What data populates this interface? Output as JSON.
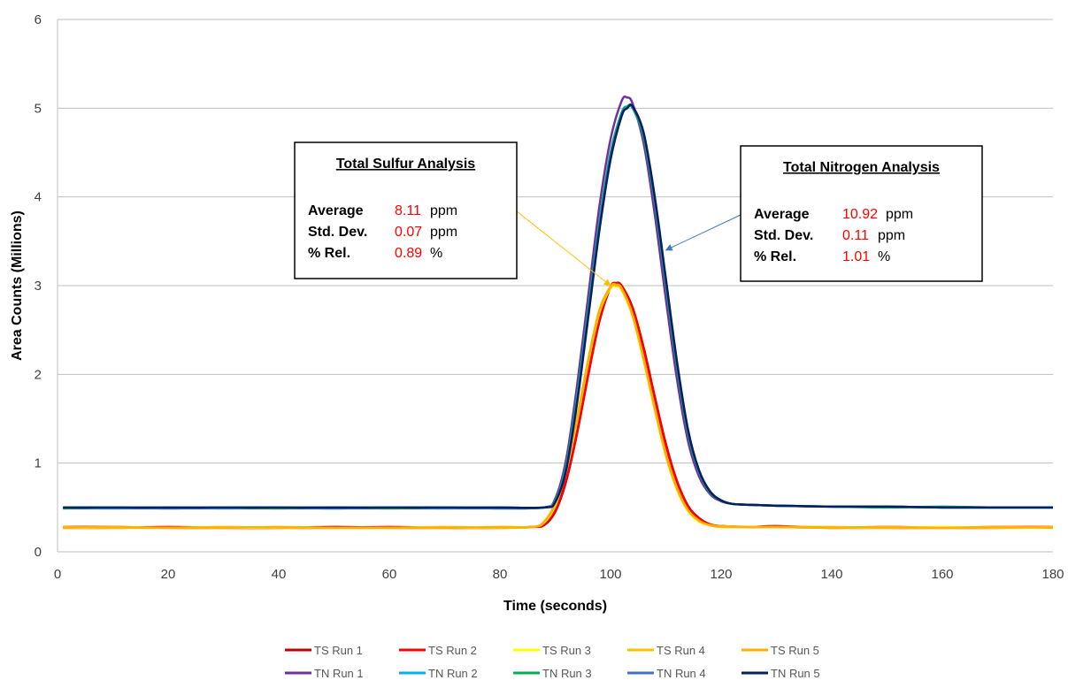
{
  "chart_data": {
    "type": "line",
    "title": "",
    "xlabel": "Time (seconds)",
    "ylabel": "Area Counts (Millions)",
    "xlim": [
      0,
      180
    ],
    "ylim": [
      0,
      6
    ],
    "xticks": [
      "0",
      "20",
      "40",
      "60",
      "80",
      "100",
      "120",
      "140",
      "160",
      "180"
    ],
    "yticks": [
      "0",
      "1",
      "2",
      "3",
      "4",
      "5",
      "6"
    ],
    "grid": "horizontal",
    "legend_position": "bottom",
    "series": [
      {
        "name": "TS Run 1",
        "color": "#C00000",
        "x": [
          1,
          10,
          20,
          30,
          40,
          50,
          60,
          70,
          80,
          86,
          88,
          90,
          92,
          94,
          96,
          98,
          100,
          101,
          102,
          104,
          106,
          108,
          110,
          112,
          114,
          116,
          118,
          120,
          125,
          130,
          140,
          150,
          160,
          170,
          180
        ],
        "y": [
          0.28,
          0.28,
          0.27,
          0.27,
          0.27,
          0.28,
          0.27,
          0.27,
          0.27,
          0.28,
          0.3,
          0.45,
          0.8,
          1.35,
          2.0,
          2.6,
          2.98,
          3.03,
          3.0,
          2.75,
          2.3,
          1.75,
          1.22,
          0.8,
          0.52,
          0.38,
          0.31,
          0.29,
          0.28,
          0.29,
          0.27,
          0.28,
          0.27,
          0.27,
          0.28
        ]
      },
      {
        "name": "TS Run 2",
        "color": "#FF0000",
        "x": [
          1,
          10,
          20,
          30,
          40,
          50,
          60,
          70,
          80,
          86,
          88,
          90,
          92,
          94,
          96,
          98,
          100,
          101,
          102,
          104,
          106,
          108,
          110,
          112,
          114,
          116,
          118,
          120,
          125,
          130,
          140,
          150,
          160,
          170,
          180
        ],
        "y": [
          0.27,
          0.27,
          0.28,
          0.27,
          0.27,
          0.27,
          0.28,
          0.27,
          0.27,
          0.28,
          0.31,
          0.47,
          0.82,
          1.37,
          2.02,
          2.62,
          2.99,
          3.02,
          2.99,
          2.73,
          2.28,
          1.73,
          1.2,
          0.79,
          0.51,
          0.37,
          0.31,
          0.29,
          0.28,
          0.28,
          0.27,
          0.27,
          0.27,
          0.28,
          0.28
        ]
      },
      {
        "name": "TS Run 3",
        "color": "#FFFF00",
        "x": [
          1,
          10,
          20,
          30,
          40,
          50,
          60,
          70,
          80,
          86,
          88,
          90,
          92,
          94,
          96,
          98,
          100,
          101,
          102,
          104,
          106,
          108,
          110,
          112,
          114,
          116,
          118,
          120,
          125,
          130,
          140,
          150,
          160,
          170,
          180
        ],
        "y": [
          0.27,
          0.27,
          0.27,
          0.27,
          0.27,
          0.27,
          0.27,
          0.27,
          0.27,
          0.28,
          0.33,
          0.52,
          0.92,
          1.5,
          2.15,
          2.7,
          2.97,
          2.99,
          2.95,
          2.65,
          2.15,
          1.6,
          1.08,
          0.7,
          0.46,
          0.34,
          0.3,
          0.28,
          0.28,
          0.28,
          0.27,
          0.27,
          0.28,
          0.27,
          0.27
        ]
      },
      {
        "name": "TS Run 4",
        "color": "#FFC000",
        "x": [
          1,
          10,
          20,
          30,
          40,
          50,
          60,
          70,
          80,
          86,
          88,
          90,
          92,
          94,
          96,
          98,
          100,
          101,
          102,
          104,
          106,
          108,
          110,
          112,
          114,
          116,
          118,
          120,
          125,
          130,
          140,
          150,
          160,
          170,
          180
        ],
        "y": [
          0.28,
          0.27,
          0.27,
          0.28,
          0.27,
          0.27,
          0.27,
          0.28,
          0.27,
          0.28,
          0.34,
          0.54,
          0.94,
          1.52,
          2.17,
          2.72,
          2.98,
          3.0,
          2.96,
          2.66,
          2.16,
          1.61,
          1.09,
          0.71,
          0.47,
          0.35,
          0.3,
          0.28,
          0.28,
          0.28,
          0.28,
          0.27,
          0.27,
          0.27,
          0.28
        ]
      },
      {
        "name": "TS Run 5",
        "color": "#FFB000",
        "x": [
          1,
          10,
          20,
          30,
          40,
          50,
          60,
          70,
          80,
          86,
          88,
          90,
          92,
          94,
          96,
          98,
          100,
          101,
          102,
          104,
          106,
          108,
          110,
          112,
          114,
          116,
          118,
          120,
          125,
          130,
          140,
          150,
          160,
          170,
          180
        ],
        "y": [
          0.27,
          0.28,
          0.27,
          0.27,
          0.28,
          0.27,
          0.27,
          0.27,
          0.28,
          0.28,
          0.34,
          0.55,
          0.95,
          1.53,
          2.18,
          2.73,
          2.99,
          3.01,
          2.97,
          2.67,
          2.17,
          1.62,
          1.1,
          0.72,
          0.47,
          0.35,
          0.3,
          0.29,
          0.28,
          0.28,
          0.27,
          0.28,
          0.27,
          0.28,
          0.27
        ]
      },
      {
        "name": "TN Run 1",
        "color": "#7030A0",
        "x": [
          1,
          10,
          20,
          30,
          40,
          50,
          60,
          70,
          80,
          88,
          90,
          92,
          94,
          96,
          98,
          100,
          102,
          103,
          104,
          106,
          108,
          110,
          112,
          114,
          116,
          118,
          120,
          122,
          125,
          130,
          140,
          150,
          160,
          170,
          180
        ],
        "y": [
          0.49,
          0.49,
          0.49,
          0.49,
          0.49,
          0.49,
          0.49,
          0.49,
          0.49,
          0.5,
          0.6,
          1.05,
          1.9,
          2.9,
          3.9,
          4.65,
          5.08,
          5.12,
          5.05,
          4.6,
          3.8,
          2.85,
          1.95,
          1.25,
          0.85,
          0.65,
          0.57,
          0.54,
          0.53,
          0.52,
          0.51,
          0.51,
          0.5,
          0.5,
          0.5
        ]
      },
      {
        "name": "TN Run 2",
        "color": "#00B0F0",
        "x": [
          1,
          10,
          20,
          30,
          40,
          50,
          60,
          70,
          80,
          88,
          90,
          92,
          94,
          96,
          98,
          100,
          102,
          103,
          104,
          106,
          108,
          110,
          112,
          114,
          116,
          118,
          120,
          122,
          125,
          130,
          140,
          150,
          160,
          170,
          180
        ],
        "y": [
          0.5,
          0.49,
          0.5,
          0.49,
          0.5,
          0.49,
          0.5,
          0.49,
          0.5,
          0.5,
          0.58,
          0.98,
          1.78,
          2.75,
          3.72,
          4.5,
          4.95,
          5.02,
          5.01,
          4.68,
          3.95,
          3.02,
          2.1,
          1.35,
          0.9,
          0.67,
          0.58,
          0.54,
          0.53,
          0.52,
          0.51,
          0.51,
          0.5,
          0.5,
          0.5
        ]
      },
      {
        "name": "TN Run 3",
        "color": "#00B050",
        "x": [
          1,
          10,
          20,
          30,
          40,
          50,
          60,
          70,
          80,
          88,
          90,
          92,
          94,
          96,
          98,
          100,
          102,
          103,
          104,
          106,
          108,
          110,
          112,
          114,
          116,
          118,
          120,
          122,
          125,
          130,
          140,
          150,
          160,
          170,
          180
        ],
        "y": [
          0.49,
          0.5,
          0.49,
          0.5,
          0.49,
          0.5,
          0.49,
          0.5,
          0.49,
          0.5,
          0.58,
          0.97,
          1.76,
          2.73,
          3.7,
          4.48,
          4.94,
          5.01,
          5.0,
          4.67,
          3.94,
          3.01,
          2.09,
          1.34,
          0.9,
          0.67,
          0.58,
          0.54,
          0.53,
          0.52,
          0.51,
          0.5,
          0.51,
          0.5,
          0.5
        ]
      },
      {
        "name": "TN Run 4",
        "color": "#4472C4",
        "x": [
          1,
          10,
          20,
          30,
          40,
          50,
          60,
          70,
          80,
          88,
          90,
          92,
          94,
          96,
          98,
          100,
          102,
          103,
          104,
          106,
          108,
          110,
          112,
          114,
          116,
          118,
          120,
          122,
          125,
          130,
          140,
          150,
          160,
          170,
          180
        ],
        "y": [
          0.5,
          0.5,
          0.49,
          0.5,
          0.5,
          0.49,
          0.5,
          0.5,
          0.49,
          0.5,
          0.57,
          0.95,
          1.72,
          2.68,
          3.65,
          4.44,
          4.92,
          5.0,
          5.01,
          4.7,
          3.98,
          3.06,
          2.13,
          1.37,
          0.91,
          0.68,
          0.58,
          0.54,
          0.53,
          0.52,
          0.51,
          0.51,
          0.5,
          0.5,
          0.5
        ]
      },
      {
        "name": "TN Run 5",
        "color": "#002060",
        "x": [
          1,
          10,
          20,
          30,
          40,
          50,
          60,
          70,
          80,
          88,
          90,
          92,
          94,
          96,
          98,
          100,
          102,
          103,
          104,
          106,
          108,
          110,
          112,
          114,
          116,
          118,
          120,
          122,
          125,
          130,
          140,
          150,
          160,
          170,
          180
        ],
        "y": [
          0.5,
          0.5,
          0.5,
          0.5,
          0.5,
          0.5,
          0.5,
          0.5,
          0.5,
          0.5,
          0.56,
          0.93,
          1.7,
          2.66,
          3.63,
          4.42,
          4.91,
          5.0,
          5.02,
          4.72,
          4.0,
          3.08,
          2.15,
          1.38,
          0.92,
          0.68,
          0.58,
          0.54,
          0.53,
          0.52,
          0.51,
          0.51,
          0.5,
          0.5,
          0.5
        ]
      }
    ],
    "annotations": [
      {
        "title": "Total Sulfur Analysis",
        "rows": [
          {
            "label": "Average",
            "value": "8.11",
            "unit": "ppm"
          },
          {
            "label": "Std. Dev.",
            "value": "0.07",
            "unit": "ppm"
          },
          {
            "label": "% Rel.",
            "value": "0.89",
            "unit": "%"
          }
        ],
        "arrow_color": "#FFC000",
        "arrow_target": [
          100,
          3.0
        ]
      },
      {
        "title": "Total Nitrogen Analysis",
        "rows": [
          {
            "label": "Average",
            "value": "10.92",
            "unit": "ppm"
          },
          {
            "label": "Std. Dev.",
            "value": "0.11",
            "unit": "ppm"
          },
          {
            "label": "% Rel.",
            "value": "1.01",
            "unit": "%"
          }
        ],
        "arrow_color": "#4472C4",
        "arrow_target": [
          110,
          3.4
        ]
      }
    ],
    "value_color": "#FF0000",
    "grid_color": "#BFBFBF"
  }
}
